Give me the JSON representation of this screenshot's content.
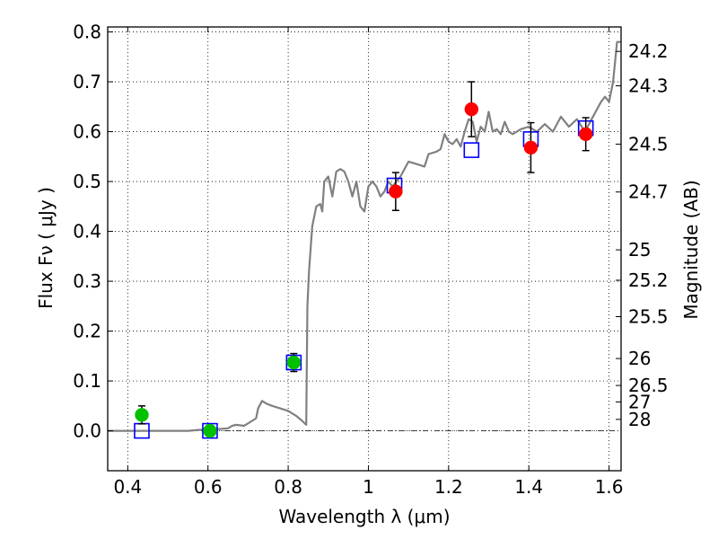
{
  "chart_data": {
    "type": "scatter",
    "xlabel": "Wavelength  λ (μm)",
    "ylabel": "Flux  Fν  ( μJy )",
    "y2label": "Magnitude (AB)",
    "xlim": [
      0.35,
      1.63
    ],
    "ylim": [
      -0.08,
      0.81
    ],
    "grid": true,
    "x_ticks": [
      0.4,
      0.6,
      0.8,
      1.0,
      1.2,
      1.4,
      1.6
    ],
    "x_tick_labels": [
      "0.4",
      "0.6",
      "0.8",
      "1",
      "1.2",
      "1.4",
      "1.6"
    ],
    "y_ticks": [
      0.0,
      0.1,
      0.2,
      0.3,
      0.4,
      0.5,
      0.6,
      0.7,
      0.8
    ],
    "y_tick_labels": [
      "0.0",
      "0.1",
      "0.2",
      "0.3",
      "0.4",
      "0.5",
      "0.6",
      "0.7",
      "0.8"
    ],
    "mag_ticks": [
      {
        "label": "24.2",
        "flux": 0.761
      },
      {
        "label": "24.3",
        "flux": 0.692
      },
      {
        "label": "24.5",
        "flux": 0.575
      },
      {
        "label": "24.7",
        "flux": 0.479
      },
      {
        "label": "25",
        "flux": 0.363
      },
      {
        "label": "25.2",
        "flux": 0.302
      },
      {
        "label": "25.5",
        "flux": 0.229
      },
      {
        "label": "26",
        "flux": 0.145
      },
      {
        "label": "26.5",
        "flux": 0.091
      },
      {
        "label": "27",
        "flux": 0.058
      },
      {
        "label": "28",
        "flux": 0.023
      }
    ],
    "model_spectrum": {
      "color": "#808080",
      "x": [
        0.35,
        0.55,
        0.58,
        0.62,
        0.65,
        0.66,
        0.67,
        0.69,
        0.7,
        0.71,
        0.72,
        0.725,
        0.735,
        0.745,
        0.76,
        0.78,
        0.8,
        0.82,
        0.835,
        0.845,
        0.848,
        0.852,
        0.86,
        0.87,
        0.88,
        0.885,
        0.89,
        0.9,
        0.91,
        0.92,
        0.93,
        0.94,
        0.95,
        0.96,
        0.97,
        0.98,
        0.99,
        1.0,
        1.01,
        1.02,
        1.03,
        1.04,
        1.05,
        1.06,
        1.08,
        1.1,
        1.12,
        1.14,
        1.15,
        1.17,
        1.18,
        1.19,
        1.2,
        1.21,
        1.22,
        1.23,
        1.24,
        1.25,
        1.26,
        1.27,
        1.28,
        1.29,
        1.3,
        1.31,
        1.32,
        1.33,
        1.34,
        1.35,
        1.36,
        1.37,
        1.38,
        1.4,
        1.42,
        1.44,
        1.46,
        1.48,
        1.5,
        1.52,
        1.54,
        1.56,
        1.58,
        1.59,
        1.6,
        1.61,
        1.62,
        1.63
      ],
      "y": [
        0.0,
        0.0,
        0.002,
        0.003,
        0.005,
        0.01,
        0.012,
        0.01,
        0.015,
        0.02,
        0.025,
        0.045,
        0.06,
        0.055,
        0.05,
        0.045,
        0.04,
        0.03,
        0.02,
        0.012,
        0.25,
        0.32,
        0.41,
        0.45,
        0.455,
        0.44,
        0.5,
        0.51,
        0.47,
        0.52,
        0.525,
        0.52,
        0.5,
        0.47,
        0.5,
        0.45,
        0.44,
        0.49,
        0.5,
        0.49,
        0.47,
        0.48,
        0.5,
        0.49,
        0.51,
        0.54,
        0.535,
        0.53,
        0.555,
        0.56,
        0.565,
        0.595,
        0.58,
        0.575,
        0.585,
        0.57,
        0.6,
        0.625,
        0.62,
        0.58,
        0.61,
        0.6,
        0.64,
        0.6,
        0.605,
        0.595,
        0.62,
        0.6,
        0.595,
        0.6,
        0.605,
        0.61,
        0.6,
        0.615,
        0.6,
        0.63,
        0.61,
        0.625,
        0.6,
        0.63,
        0.66,
        0.67,
        0.66,
        0.7,
        0.78,
        0.78
      ]
    },
    "series": [
      {
        "marker": "square-open",
        "color": "#0000ff",
        "points": [
          {
            "x": 0.435,
            "y": 0.0
          },
          {
            "x": 0.605,
            "y": 0.0
          },
          {
            "x": 0.814,
            "y": 0.137
          },
          {
            "x": 1.065,
            "y": 0.492
          },
          {
            "x": 1.257,
            "y": 0.563
          },
          {
            "x": 1.405,
            "y": 0.585
          },
          {
            "x": 1.542,
            "y": 0.607
          }
        ]
      },
      {
        "marker": "circle-filled",
        "color": "#00c000",
        "points": [
          {
            "x": 0.435,
            "y": 0.032,
            "err": 0.018
          },
          {
            "x": 0.605,
            "y": 0.0,
            "err": 0.0
          },
          {
            "x": 0.814,
            "y": 0.137,
            "err": 0.018
          }
        ]
      },
      {
        "marker": "circle-filled",
        "color": "#ff0000",
        "points": [
          {
            "x": 1.068,
            "y": 0.48,
            "err": 0.038
          },
          {
            "x": 1.257,
            "y": 0.645,
            "err": 0.055
          },
          {
            "x": 1.405,
            "y": 0.568,
            "err": 0.05
          },
          {
            "x": 1.542,
            "y": 0.595,
            "err": 0.033
          }
        ]
      }
    ]
  }
}
